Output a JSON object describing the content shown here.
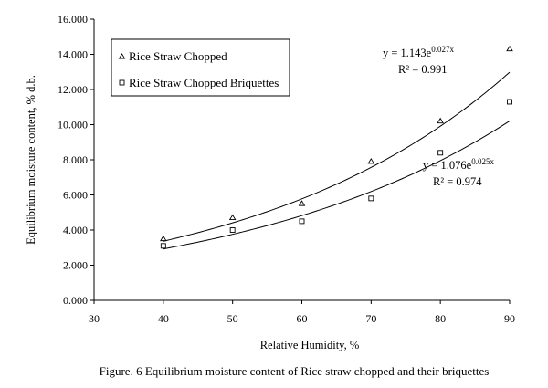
{
  "chart_data": {
    "type": "scatter",
    "title": "",
    "xlabel": "Relative Humidity, %",
    "ylabel": "Equilibrium moisture content, % d.b.",
    "xlim": [
      30,
      90
    ],
    "ylim": [
      0,
      16
    ],
    "xticks": [
      "30",
      "40",
      "50",
      "60",
      "70",
      "80",
      "90"
    ],
    "yticks": [
      "0.000",
      "2.000",
      "4.000",
      "6.000",
      "8.000",
      "10.000",
      "12.000",
      "14.000",
      "16.000"
    ],
    "grid": false,
    "legend_position": "top-left",
    "series": [
      {
        "name": "Rice Straw Chopped",
        "marker": "triangle",
        "x": [
          40,
          50,
          60,
          70,
          80,
          90
        ],
        "y": [
          3.5,
          4.7,
          5.5,
          7.9,
          10.2,
          14.3
        ],
        "trendline": {
          "type": "exponential",
          "a": 1.143,
          "b": 0.027,
          "x_range": [
            40,
            90
          ]
        },
        "equation": {
          "base": "y = 1.143e",
          "exponent": "0.027x",
          "r2": "R² = 0.991"
        }
      },
      {
        "name": "Rice Straw Chopped Briquettes",
        "marker": "square",
        "x": [
          40,
          50,
          60,
          70,
          80,
          90
        ],
        "y": [
          3.1,
          4.0,
          4.5,
          5.8,
          8.4,
          11.3
        ],
        "trendline": {
          "type": "exponential",
          "a": 1.076,
          "b": 0.025,
          "x_range": [
            40,
            90
          ]
        },
        "equation": {
          "base": "y = 1.076e",
          "exponent": "0.025x",
          "r2": "R² = 0.974"
        }
      }
    ]
  },
  "caption": "Figure. 6 Equilibrium moisture content of Rice straw chopped and their briquettes"
}
